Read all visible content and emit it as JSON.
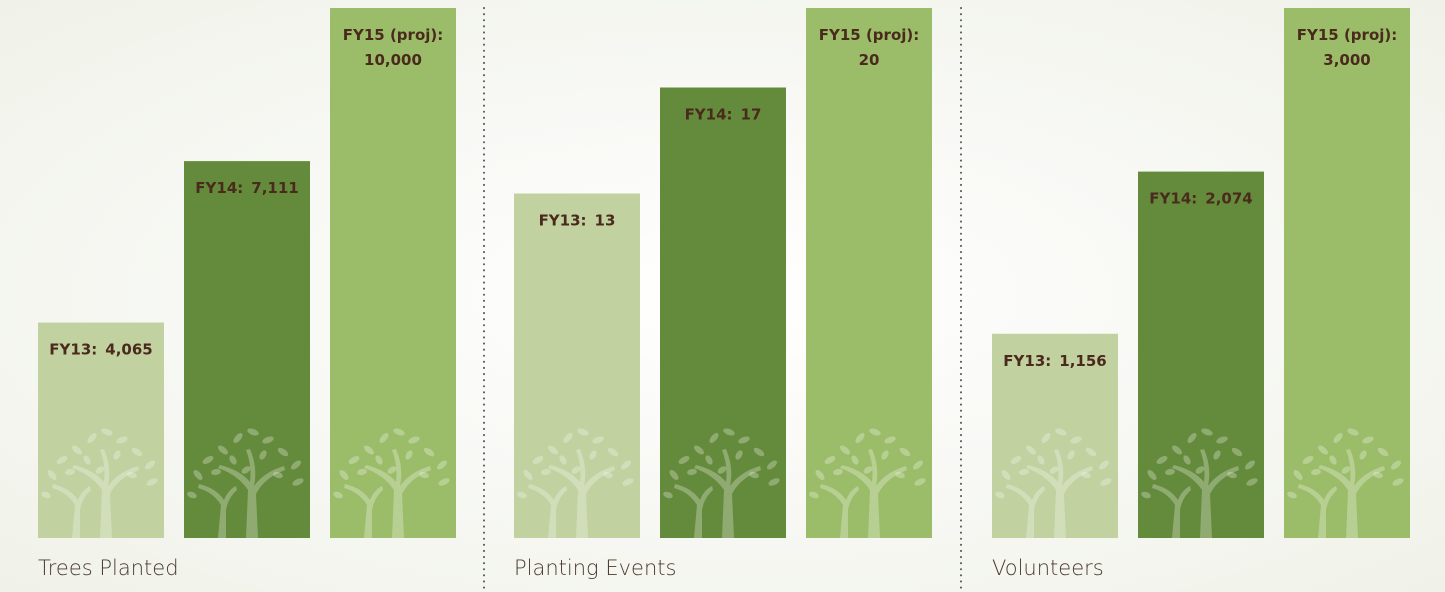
{
  "chart_data": [
    {
      "type": "bar",
      "title": "Trees Planted",
      "categories": [
        "FY13:",
        "FY14:",
        "FY15 (proj):"
      ],
      "values": [
        4065,
        7111,
        10000
      ],
      "value_labels": [
        "4,065",
        "7,111",
        "10,000"
      ],
      "colors": [
        "#c1d1a0",
        "#648b3b",
        "#9bbd69"
      ]
    },
    {
      "type": "bar",
      "title": "Planting Events",
      "categories": [
        "FY13:",
        "FY14:",
        "FY15 (proj):"
      ],
      "values": [
        13,
        17,
        20
      ],
      "colors": [
        "#c1d1a0",
        "#648b3b",
        "#9bbd69"
      ]
    },
    {
      "type": "bar",
      "title": "Volunteers",
      "categories": [
        "FY13:",
        "FY14:",
        "FY15 (proj):"
      ],
      "values": [
        1156,
        2074,
        3000
      ],
      "value_labels": [
        "1,156",
        "2,074",
        "3,000"
      ],
      "colors": [
        "#c1d1a0",
        "#648b3b",
        "#9bbd69"
      ]
    }
  ]
}
